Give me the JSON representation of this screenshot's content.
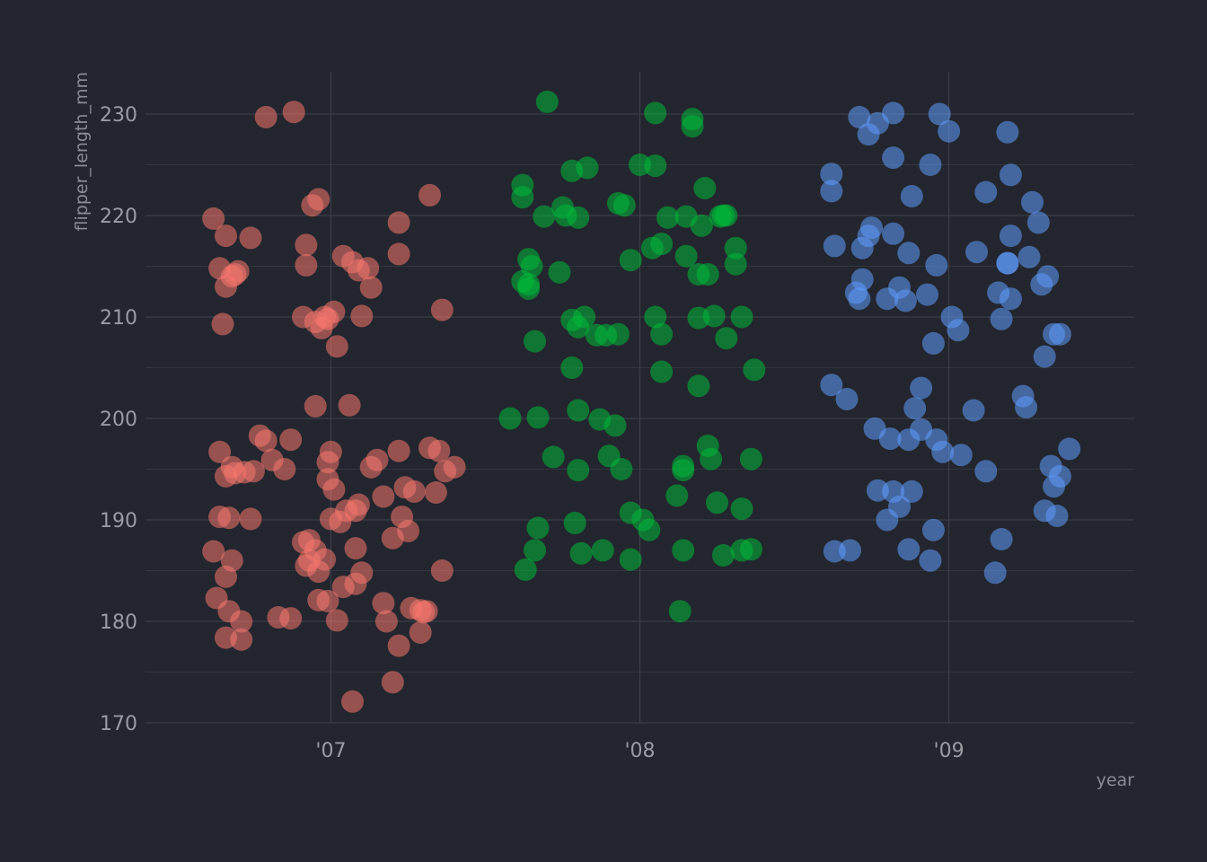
{
  "chart_data": {
    "type": "scatter",
    "title": "",
    "xlabel": "year",
    "ylabel": "flipper_length_mm",
    "xlim": [
      2006.4,
      2009.6
    ],
    "ylim": [
      169.5,
      234.5
    ],
    "x_ticks": [
      2007,
      2008,
      2009
    ],
    "x_tick_labels": [
      "'07",
      "'08",
      "'09"
    ],
    "y_ticks": [
      170,
      180,
      190,
      200,
      210,
      220,
      230
    ],
    "grid": true,
    "legend": "none",
    "marker_opacity": 0.55,
    "colors": [
      "#f8766d",
      "#00ba38",
      "#619cff"
    ],
    "series": [
      {
        "x": [
          2006.79,
          2006.88,
          2006.62,
          2006.66,
          2006.74,
          2006.64,
          2006.66,
          2006.69,
          2006.7,
          2006.68,
          2006.65,
          2006.94,
          2006.96,
          2006.92,
          2006.92,
          2007.04,
          2007.07,
          2007.12,
          2007.13,
          2007.09,
          2006.98,
          2006.91,
          2007.01,
          2007.1,
          2006.95,
          2006.97,
          2006.99,
          2007.02,
          2007.22,
          2007.32,
          2007.22,
          2007.36,
          2006.95,
          2007.06,
          2006.77,
          2006.79,
          2006.87,
          2006.81,
          2006.85,
          2006.64,
          2006.68,
          2006.69,
          2006.66,
          2006.72,
          2006.75,
          2006.93,
          2006.99,
          2007.0,
          2006.99,
          2007.01,
          2006.95,
          2007.05,
          2007.13,
          2007.09,
          2007.15,
          2007.22,
          2007.32,
          2007.35,
          2007.37,
          2007.4,
          2007.34,
          2007.24,
          2007.27,
          2007.23,
          2007.17,
          2007.2,
          2007.08,
          2007.08,
          2007.03,
          2007.0,
          2006.93,
          2006.92,
          2006.91,
          2006.96,
          2006.98,
          2006.99,
          2007.04,
          2007.1,
          2007.08,
          2007.17,
          2007.26,
          2007.29,
          2007.36,
          2006.64,
          2006.67,
          2006.62,
          2006.66,
          2006.74,
          2006.68,
          2006.63,
          2006.67,
          2006.71,
          2006.83,
          2006.87,
          2006.96,
          2007.02,
          2007.18,
          2007.2,
          2007.25,
          2007.29,
          2007.31,
          2007.3,
          2007.22,
          2007.07,
          2006.71,
          2006.66
        ],
        "y": [
          229.7,
          230.2,
          219.7,
          218.0,
          217.8,
          214.8,
          213.0,
          214.2,
          214.5,
          214.0,
          209.3,
          221.0,
          221.6,
          217.1,
          215.1,
          216.0,
          215.4,
          214.8,
          212.9,
          214.6,
          210.0,
          210.0,
          210.5,
          210.1,
          209.5,
          208.9,
          209.8,
          207.1,
          219.3,
          222.0,
          216.2,
          210.7,
          201.2,
          201.3,
          198.3,
          197.8,
          197.9,
          195.9,
          195.0,
          196.7,
          195.2,
          194.6,
          194.3,
          194.7,
          194.8,
          188.0,
          195.7,
          196.7,
          194.0,
          193.0,
          187.0,
          190.9,
          195.2,
          191.5,
          195.9,
          196.8,
          197.1,
          196.8,
          194.8,
          195.2,
          192.7,
          193.2,
          192.8,
          190.3,
          192.3,
          188.2,
          190.9,
          187.2,
          189.8,
          190.1,
          186.0,
          185.5,
          187.8,
          184.9,
          186.1,
          182.0,
          183.4,
          184.8,
          183.7,
          181.8,
          181.3,
          181.1,
          185.0,
          190.3,
          190.2,
          186.9,
          184.4,
          190.1,
          186.0,
          182.3,
          181.0,
          180.0,
          180.4,
          180.3,
          182.1,
          180.1,
          180.0,
          174.0,
          188.9,
          178.9,
          181.0,
          180.9,
          177.6,
          172.1,
          178.2,
          178.4
        ],
        "r": 12.5
      },
      {
        "x": [
          2007.7,
          2007.62,
          2007.62,
          2007.75,
          2007.78,
          2007.83,
          2008.0,
          2008.05,
          2008.17,
          2007.69,
          2007.76,
          2007.8,
          2007.93,
          2007.95,
          2008.05,
          2008.17,
          2008.21,
          2008.26,
          2008.27,
          2008.28,
          2008.09,
          2008.15,
          2008.2,
          2007.64,
          2007.65,
          2007.62,
          2007.64,
          2007.64,
          2007.74,
          2008.04,
          2008.07,
          2008.15,
          2008.19,
          2008.22,
          2008.31,
          2008.31,
          2008.33,
          2007.66,
          2007.78,
          2007.8,
          2007.82,
          2007.86,
          2008.05,
          2008.07,
          2008.19,
          2008.24,
          2008.28,
          2007.93,
          2007.89,
          2007.78,
          2008.07,
          2008.37,
          2008.19,
          2007.58,
          2007.67,
          2007.8,
          2007.87,
          2007.92,
          2007.72,
          2007.8,
          2007.9,
          2007.94,
          2008.22,
          2008.23,
          2008.14,
          2008.14,
          2008.12,
          2008.36,
          2008.25,
          2008.33,
          2007.97,
          2008.01,
          2008.03,
          2007.79,
          2007.67,
          2007.66,
          2007.81,
          2007.88,
          2007.97,
          2008.14,
          2008.27,
          2008.33,
          2008.36,
          2007.63,
          2008.13,
          2007.97
        ],
        "y": [
          231.2,
          223.0,
          221.8,
          220.8,
          224.4,
          224.7,
          225.0,
          224.9,
          229.5,
          219.9,
          220.0,
          219.8,
          221.2,
          221.0,
          230.1,
          228.8,
          222.7,
          219.9,
          220.0,
          220.0,
          219.8,
          219.9,
          219.0,
          215.7,
          215.0,
          213.5,
          212.8,
          213.2,
          214.4,
          216.8,
          217.2,
          216.0,
          214.2,
          214.2,
          216.8,
          215.2,
          210.0,
          207.6,
          209.7,
          209.0,
          210.0,
          208.2,
          210.0,
          208.3,
          209.9,
          210.1,
          207.9,
          208.3,
          208.2,
          205.0,
          204.6,
          204.8,
          203.2,
          200.0,
          200.1,
          200.8,
          199.9,
          199.3,
          196.2,
          194.9,
          196.3,
          195.0,
          197.3,
          196.0,
          195.3,
          194.9,
          192.4,
          196.0,
          191.7,
          191.1,
          190.7,
          190.0,
          189.0,
          189.7,
          189.2,
          187.0,
          186.7,
          187.0,
          186.1,
          187.0,
          186.5,
          187.0,
          187.1,
          185.1,
          181.0,
          215.6
        ],
        "r": 12.5
      },
      {
        "x": [
          2008.71,
          2008.77,
          2008.82,
          2008.74,
          2008.82,
          2008.97,
          2009.0,
          2008.62,
          2008.62,
          2008.63,
          2008.72,
          2008.74,
          2008.75,
          2008.82,
          2008.87,
          2008.88,
          2008.94,
          2008.96,
          2008.93,
          2009.12,
          2009.19,
          2009.2,
          2009.2,
          2009.27,
          2009.29,
          2009.09,
          2009.19,
          2009.16,
          2009.2,
          2009.26,
          2009.3,
          2009.32,
          2009.36,
          2008.72,
          2008.7,
          2008.71,
          2008.8,
          2008.84,
          2008.86,
          2008.95,
          2009.01,
          2009.03,
          2008.91,
          2009.17,
          2009.31,
          2009.34,
          2008.62,
          2008.67,
          2008.89,
          2008.91,
          2008.87,
          2008.76,
          2008.81,
          2008.88,
          2008.96,
          2008.98,
          2009.04,
          2009.08,
          2009.12,
          2009.24,
          2009.25,
          2009.33,
          2009.36,
          2009.34,
          2009.39,
          2008.77,
          2008.82,
          2008.84,
          2008.8,
          2008.87,
          2008.95,
          2008.94,
          2009.17,
          2009.15,
          2008.63,
          2008.68,
          2009.31,
          2009.35,
          2009.19
        ],
        "y": [
          229.7,
          229.1,
          230.1,
          228.0,
          225.7,
          230.0,
          228.3,
          224.1,
          222.4,
          217.0,
          216.8,
          218.0,
          218.8,
          218.2,
          216.3,
          221.9,
          225.0,
          215.1,
          212.2,
          222.3,
          228.2,
          224.0,
          218.0,
          221.3,
          219.3,
          216.4,
          215.3,
          212.4,
          211.8,
          215.9,
          213.2,
          214.0,
          208.3,
          213.7,
          212.4,
          211.8,
          211.8,
          212.9,
          211.6,
          207.4,
          210.0,
          208.7,
          203.0,
          209.8,
          206.1,
          208.3,
          203.3,
          201.9,
          201.0,
          198.9,
          197.9,
          199.0,
          198.0,
          192.8,
          197.9,
          196.7,
          196.4,
          200.8,
          194.8,
          202.2,
          201.1,
          195.3,
          194.3,
          193.3,
          197.0,
          192.9,
          192.8,
          191.3,
          190.0,
          187.1,
          189.0,
          186.0,
          188.1,
          184.8,
          186.9,
          187.0,
          190.9,
          190.4,
          215.3
        ],
        "r": 12.5
      }
    ]
  }
}
